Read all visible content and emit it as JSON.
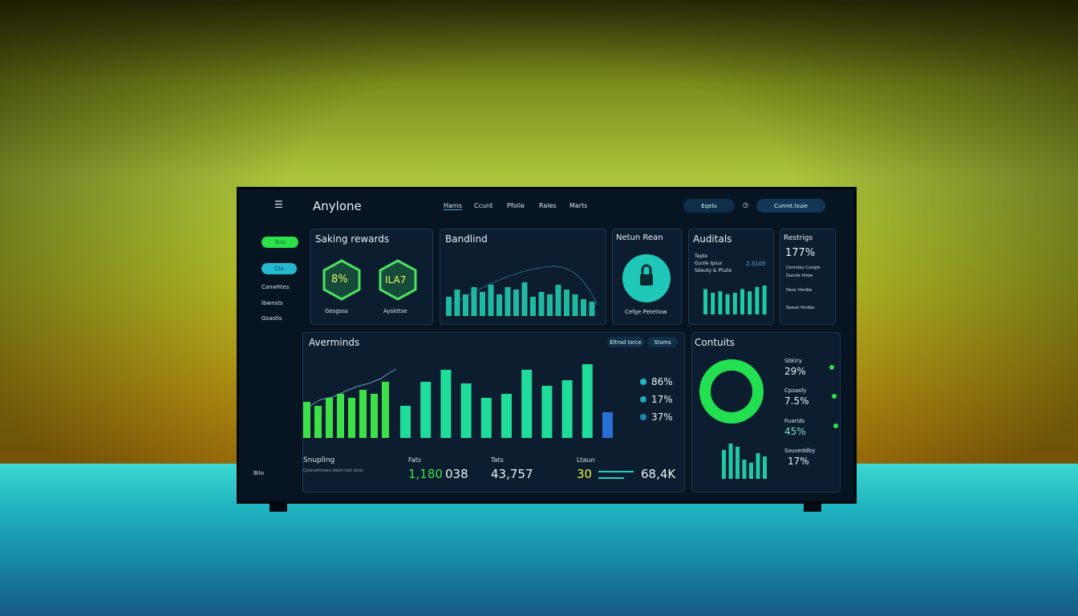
{
  "header": {
    "brand": "Anylone",
    "nav": [
      "Hams",
      "Ccunt",
      "Pfoile",
      "Rales",
      "Marts"
    ],
    "pill": "Eqelu",
    "account": "Cunmt.lsuie"
  },
  "sidebar": {
    "buttons": [
      "Snu",
      "Clu"
    ],
    "items": [
      "Canwhtes",
      "Ibwnsts",
      "Gsastls"
    ],
    "footer": "Bilo"
  },
  "panels": {
    "saking": {
      "title": "Saking rewards",
      "badges": [
        {
          "value": "8%",
          "label": "Gesgsss"
        },
        {
          "value": "ILA7",
          "label": "Ayskttse"
        }
      ]
    },
    "bandlind": {
      "title": "Bandlind",
      "bars": [
        40,
        55,
        45,
        60,
        50,
        65,
        45,
        60,
        55,
        70,
        40,
        50,
        45,
        65,
        55,
        45,
        35,
        30
      ],
      "color": "#1fb8a0"
    },
    "netun": {
      "title": "Netun Rean",
      "caption": "Cefge Petetiow"
    },
    "auditals": {
      "title": "Auditals",
      "lines": [
        "Tepte",
        "Gunle Ipsur",
        "Sdeuty & Ptulie"
      ],
      "number": "2.3105",
      "bars": [
        35,
        30,
        32,
        28,
        30,
        35,
        32,
        38,
        40
      ],
      "color": "#1fc8a8"
    },
    "restrigs": {
      "title": "Restrigs",
      "value": "177%",
      "lines": [
        "Cenrutey Cungte",
        "Ducnte thiow",
        "Hsrsr thsrlite",
        "Soesst Hrsdes"
      ]
    },
    "averminds": {
      "title": "Averminds",
      "buttons": [
        "Eltrsd tsrce",
        "Stsms"
      ],
      "bars_left": [
        45,
        40,
        50,
        55,
        50,
        60,
        55,
        70
      ],
      "left_color": "#3ee04a",
      "bars_right": [
        40,
        70,
        85,
        68,
        50,
        55,
        85,
        65,
        72,
        92,
        32
      ],
      "right_color": "#1fdc9a",
      "last_color": "#2a6fd6",
      "legend": [
        "86%",
        "17%",
        "37%"
      ],
      "stats": {
        "label": "Snupling",
        "note": "Cjzzroshmsen stdvn tsst sioss",
        "fats": "Fats",
        "v1": "1,180",
        "v2": "038",
        "tats": "Tats",
        "v3": "43,757",
        "ltaun": "Ltaun",
        "v4": "30",
        "v5": "68,4K"
      }
    },
    "contuits": {
      "title": "Contuits",
      "items": [
        {
          "label": "Sbkiry",
          "value": "29%"
        },
        {
          "label": "Cpsasfy",
          "value": "7.5%"
        },
        {
          "label": "Fuarids",
          "value": "45%"
        },
        {
          "label": "Ssuveddby",
          "value": "17%"
        }
      ],
      "bars": [
        45,
        55,
        50,
        30,
        25,
        40,
        35
      ],
      "color": "#1fc8a8"
    }
  }
}
